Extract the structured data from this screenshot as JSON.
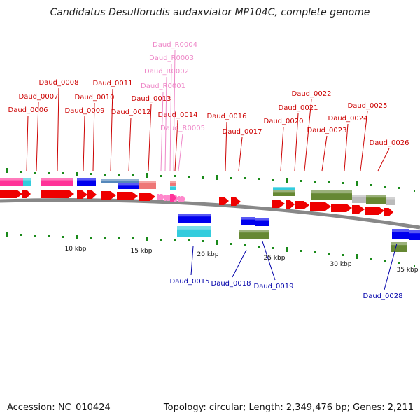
{
  "title": "Candidatus Desulforudis audaxviator MP104C, complete genome",
  "footer": {
    "accession": "Accession: NC_010424",
    "summary": "Topology: circular; Length: 2,349,476 bp; Genes: 2,211"
  },
  "colors": {
    "gene_label": "#cc0000",
    "rna_label": "#ee88c8",
    "reverse_label": "#0000aa",
    "forward_arrow": "#ee0000",
    "rna_arrow": "#ff88cc",
    "backbone": "#888888",
    "tick": "#1a8a1a"
  },
  "scale_labels": [
    "10 kbp",
    "15 kbp",
    "20 kbp",
    "25 kbp",
    "30 kbp",
    "35 kbp"
  ],
  "forward_genes": [
    "Daud_0006",
    "Daud_0007",
    "Daud_0008",
    "Daud_0009",
    "Daud_0010",
    "Daud_0011",
    "Daud_0012",
    "Daud_0013",
    "Daud_0014",
    "Daud_0016",
    "Daud_0017",
    "Daud_0020",
    "Daud_0021",
    "Daud_0022",
    "Daud_0023",
    "Daud_0024",
    "Daud_0025",
    "Daud_0026"
  ],
  "rna_genes": [
    "Daud_R0001",
    "Daud_R0002",
    "Daud_R0003",
    "Daud_R0004",
    "Daud_R0005"
  ],
  "reverse_genes": [
    "Daud_0015",
    "Daud_0018",
    "Daud_0019",
    "Daud_0028"
  ],
  "function_colors": [
    "#ff3399",
    "#33ccdd",
    "#0000ee",
    "#5588bb",
    "#ee7777",
    "#668833",
    "#bbbbbb"
  ]
}
